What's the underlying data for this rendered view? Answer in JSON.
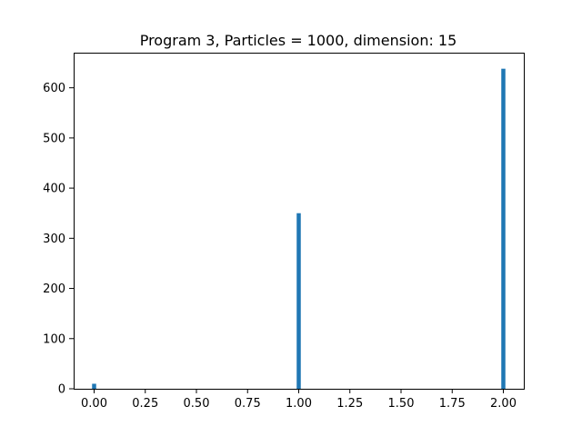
{
  "chart_data": {
    "type": "bar",
    "title": "Program 3, Particles = 1000, dimension: 15",
    "xlabel": "",
    "ylabel": "",
    "x": [
      0.0,
      1.0,
      2.0
    ],
    "values": [
      10,
      350,
      638
    ],
    "bin_width": 0.02,
    "xlim": [
      -0.1,
      2.1
    ],
    "ylim": [
      0,
      670
    ],
    "xticks": [
      0.0,
      0.25,
      0.5,
      0.75,
      1.0,
      1.25,
      1.5,
      1.75,
      2.0
    ],
    "xtick_labels": [
      "0.00",
      "0.25",
      "0.50",
      "0.75",
      "1.00",
      "1.25",
      "1.50",
      "1.75",
      "2.00"
    ],
    "yticks": [
      0,
      100,
      200,
      300,
      400,
      500,
      600
    ],
    "ytick_labels": [
      "0",
      "100",
      "200",
      "300",
      "400",
      "500",
      "600"
    ],
    "bar_color": "#1f77b4",
    "grid": false,
    "legend": "none"
  }
}
